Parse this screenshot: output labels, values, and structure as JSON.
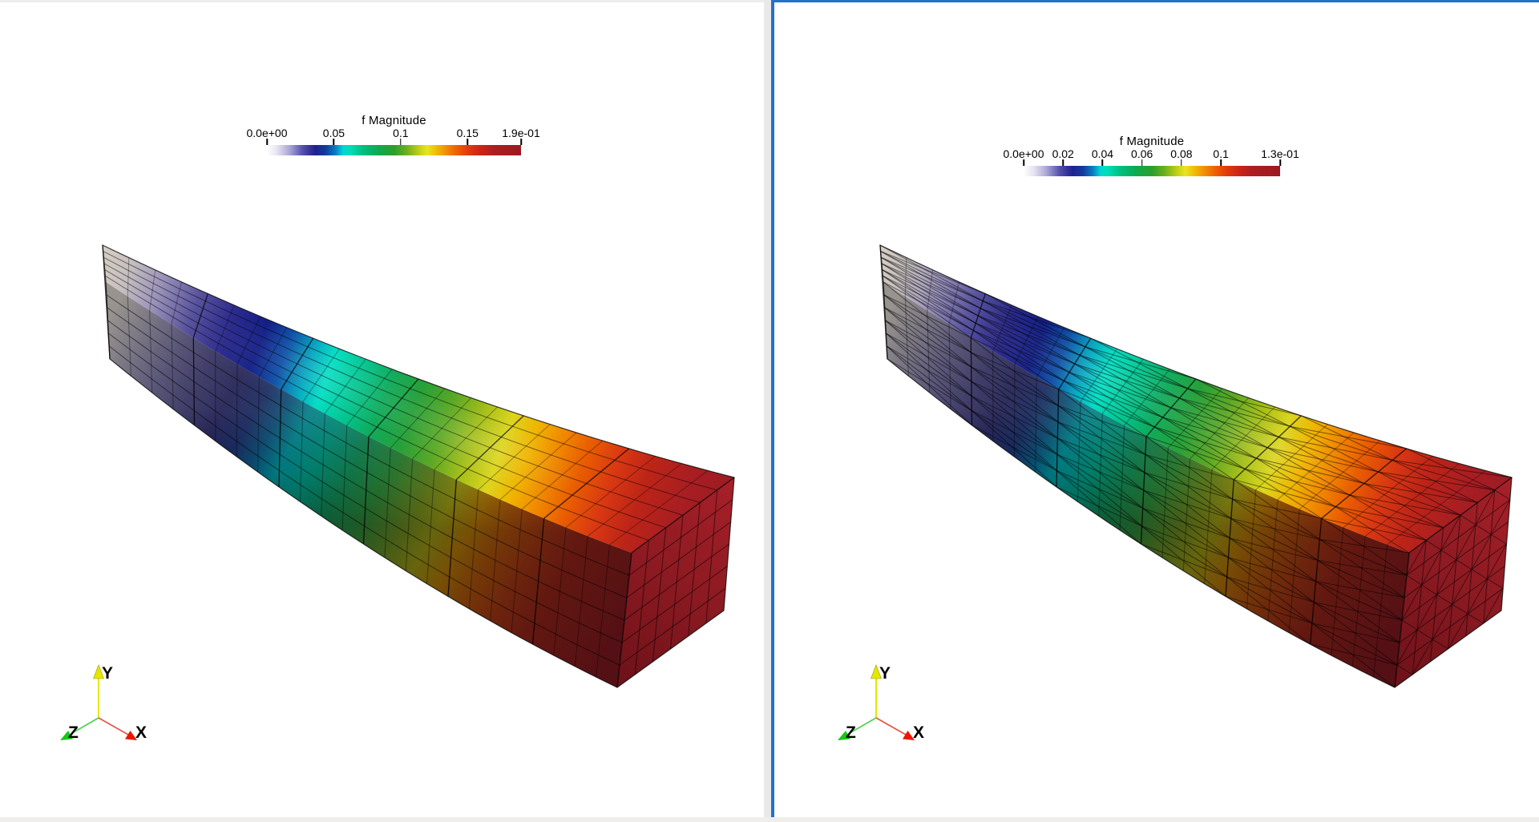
{
  "window": {
    "background": "#ffffff",
    "top_strip_color": "#ededed",
    "divider_color": "#e9e9e9",
    "active_view_border_color": "#2272cc",
    "bottom_strip_color": "#efeeed"
  },
  "views": [
    {
      "name": "left-render-view",
      "active": false,
      "mesh": "hexahedral",
      "scalar_range_min": "0.0e+00",
      "scalar_range_max": "1.9e-01",
      "colorbar": {
        "title": "f Magnitude",
        "ticks": [
          {
            "label": "0.0e+00",
            "pos": 0
          },
          {
            "label": "0.05",
            "pos": 0.2632
          },
          {
            "label": "0.1",
            "pos": 0.5263
          },
          {
            "label": "0.15",
            "pos": 0.7895
          },
          {
            "label": "1.9e-01",
            "pos": 1
          }
        ]
      },
      "axes": {
        "x": "X",
        "y": "Y",
        "z": "Z"
      }
    },
    {
      "name": "right-render-view",
      "active": true,
      "mesh": "tetrahedral",
      "scalar_range_min": "0.0e+00",
      "scalar_range_max": "1.3e-01",
      "colorbar": {
        "title": "f Magnitude",
        "ticks": [
          {
            "label": "0.0e+00",
            "pos": 0
          },
          {
            "label": "0.02",
            "pos": 0.1538
          },
          {
            "label": "0.04",
            "pos": 0.3077
          },
          {
            "label": "0.06",
            "pos": 0.4615
          },
          {
            "label": "0.08",
            "pos": 0.6154
          },
          {
            "label": "0.1",
            "pos": 0.7692
          },
          {
            "label": "1.3e-01",
            "pos": 1
          }
        ]
      },
      "axes": {
        "x": "X",
        "y": "Y",
        "z": "Z"
      }
    }
  ],
  "axis_colors": {
    "x": "#e81800",
    "y": "#e6e600",
    "z": "#16c816"
  },
  "colormap_stops": [
    [
      0,
      "#ffffff"
    ],
    [
      0.04,
      "#e6e3f0"
    ],
    [
      0.09,
      "#a9a5d4"
    ],
    [
      0.14,
      "#5450ae"
    ],
    [
      0.19,
      "#20208f"
    ],
    [
      0.23,
      "#123a9e"
    ],
    [
      0.27,
      "#0b7cc4"
    ],
    [
      0.3,
      "#00d8d2"
    ],
    [
      0.33,
      "#00dcb4"
    ],
    [
      0.38,
      "#00bd7e"
    ],
    [
      0.44,
      "#0fa94e"
    ],
    [
      0.5,
      "#2b9e2d"
    ],
    [
      0.55,
      "#6cb01c"
    ],
    [
      0.6,
      "#c5cf16"
    ],
    [
      0.63,
      "#e9e421"
    ],
    [
      0.67,
      "#f2b705"
    ],
    [
      0.71,
      "#f28705"
    ],
    [
      0.75,
      "#ee5d02"
    ],
    [
      0.79,
      "#e13c0c"
    ],
    [
      0.84,
      "#cb2417"
    ],
    [
      0.89,
      "#ae1e20"
    ],
    [
      1,
      "#9a1a23"
    ]
  ],
  "scene": {
    "top_stops": [
      [
        0,
        "#d6cfc2"
      ],
      [
        0.05,
        "#c6bfc0"
      ],
      [
        0.1,
        "#9b94ba"
      ],
      [
        0.16,
        "#59539e"
      ],
      [
        0.22,
        "#2b2a8c"
      ],
      [
        0.27,
        "#121e86"
      ],
      [
        0.31,
        "#0b4ea6"
      ],
      [
        0.35,
        "#00a8c0"
      ],
      [
        0.38,
        "#00ddc2"
      ],
      [
        0.42,
        "#00c896"
      ],
      [
        0.47,
        "#10ab5c"
      ],
      [
        0.52,
        "#28a038"
      ],
      [
        0.57,
        "#5ca824"
      ],
      [
        0.62,
        "#a8c018"
      ],
      [
        0.66,
        "#dcd51e"
      ],
      [
        0.7,
        "#f0b400"
      ],
      [
        0.74,
        "#f08800"
      ],
      [
        0.78,
        "#ea5f00"
      ],
      [
        0.83,
        "#d93812"
      ],
      [
        0.88,
        "#bc2418"
      ],
      [
        0.94,
        "#a81e22"
      ],
      [
        1,
        "#9c1b24"
      ]
    ],
    "side_stops": [
      [
        0,
        "#8f8a85"
      ],
      [
        0.06,
        "#6f6b7a"
      ],
      [
        0.12,
        "#4e4a6e"
      ],
      [
        0.18,
        "#33305e"
      ],
      [
        0.24,
        "#1f1e52"
      ],
      [
        0.29,
        "#15265c"
      ],
      [
        0.33,
        "#0a4a70"
      ],
      [
        0.37,
        "#007d85"
      ],
      [
        0.42,
        "#008472"
      ],
      [
        0.48,
        "#117a4a"
      ],
      [
        0.54,
        "#2a7a32"
      ],
      [
        0.6,
        "#5e7c1e"
      ],
      [
        0.65,
        "#8a8812"
      ],
      [
        0.7,
        "#a06c08"
      ],
      [
        0.75,
        "#9c4c0a"
      ],
      [
        0.81,
        "#923112"
      ],
      [
        0.87,
        "#842016"
      ],
      [
        1,
        "#73161c"
      ]
    ],
    "cap_stops": [
      [
        0,
        "#a82028"
      ],
      [
        0.5,
        "#8c1a22"
      ],
      [
        1,
        "#6c1118"
      ]
    ],
    "shade_stops": [
      [
        0,
        "rgba(255,255,255,0.08)"
      ],
      [
        0.55,
        "rgba(0,0,0,0.05)"
      ],
      [
        1,
        "rgba(0,0,0,0.26)"
      ]
    ]
  }
}
